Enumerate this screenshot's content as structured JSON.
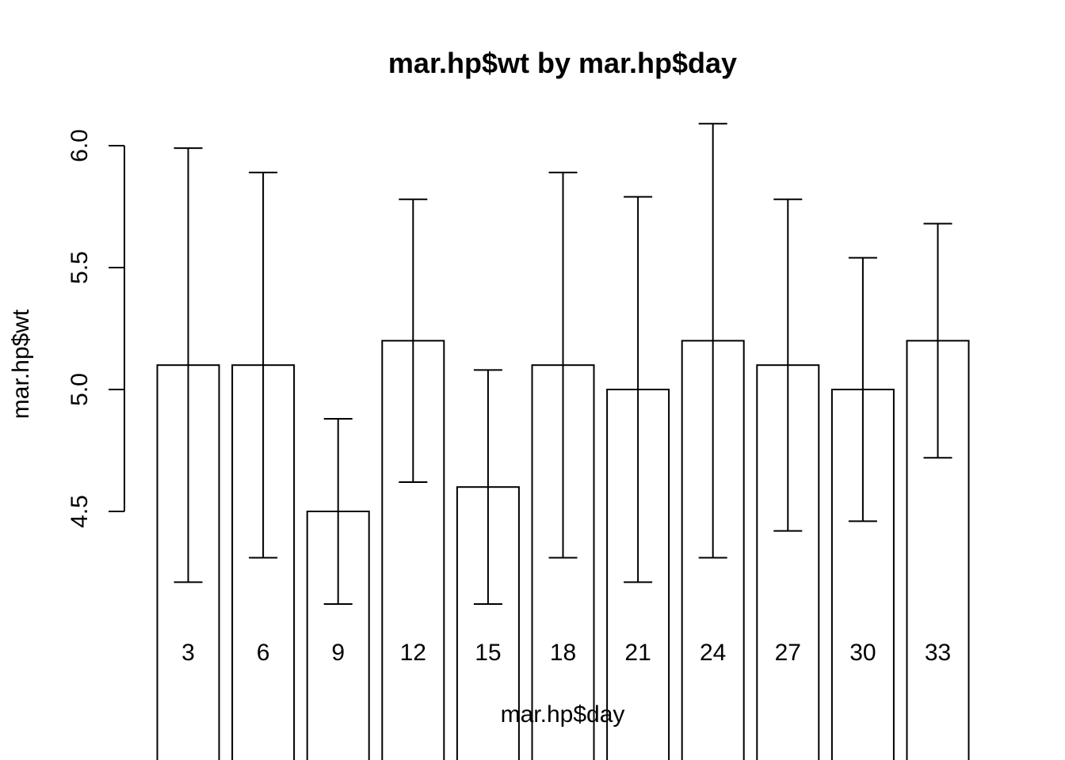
{
  "chart_data": {
    "type": "bar",
    "title": "mar.hp$wt by mar.hp$day",
    "xlabel": "mar.hp$day",
    "ylabel": "mar.hp$wt",
    "categories": [
      "3",
      "6",
      "9",
      "12",
      "15",
      "18",
      "21",
      "24",
      "27",
      "30",
      "33"
    ],
    "values": [
      5.1,
      5.1,
      4.5,
      5.2,
      4.6,
      5.1,
      5.0,
      5.2,
      5.1,
      5.0,
      5.2
    ],
    "error_low": [
      4.21,
      4.31,
      4.12,
      4.62,
      4.12,
      4.31,
      4.21,
      4.31,
      4.42,
      4.46,
      4.72
    ],
    "error_high": [
      5.99,
      5.89,
      4.88,
      5.78,
      5.08,
      5.89,
      5.79,
      6.09,
      5.78,
      5.54,
      5.68
    ],
    "yticks": [
      4.5,
      5.0,
      5.5,
      6.0
    ],
    "ytick_labels": [
      "4.5",
      "5.0",
      "5.5",
      "6.0"
    ],
    "ylim": [
      3.45,
      6.2
    ],
    "grid": false,
    "bar_fill": "#ffffff",
    "stroke_color": "#000000"
  }
}
